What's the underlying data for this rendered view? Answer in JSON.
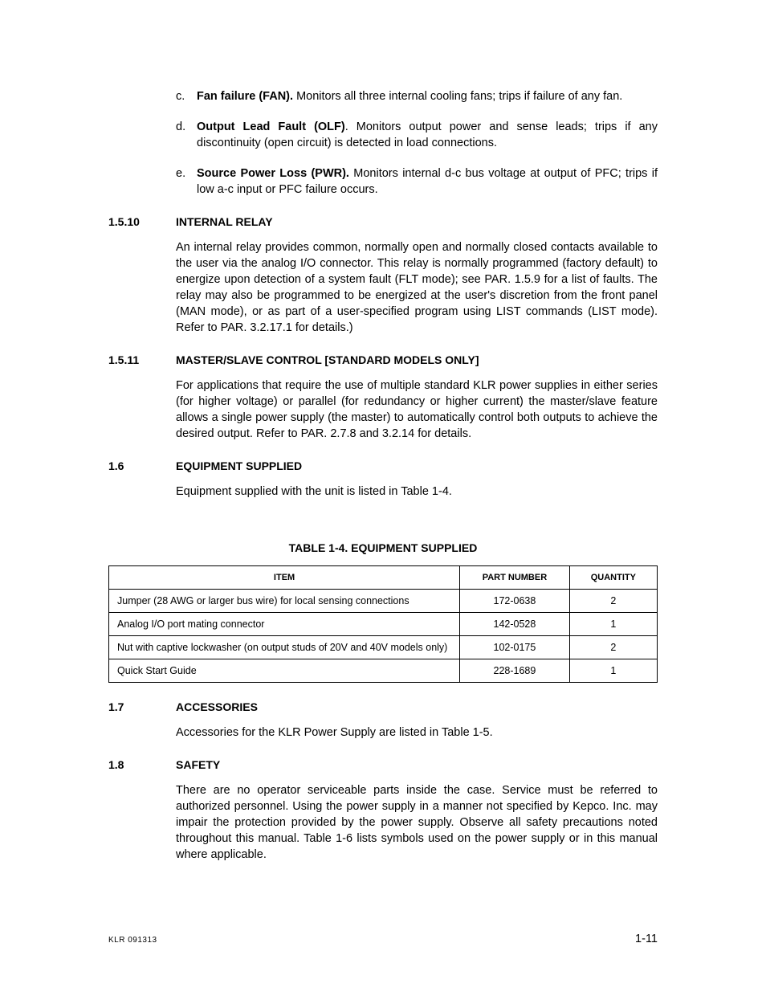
{
  "list_items": [
    {
      "marker": "c.",
      "lead": "Fan failure (FAN).",
      "rest": " Monitors all three internal cooling fans; trips if failure of any fan."
    },
    {
      "marker": "d.",
      "lead": "Output Lead Fault (OLF)",
      "rest": ". Monitors output power and sense leads; trips if any discontinuity (open circuit) is detected in load connections."
    },
    {
      "marker": "e.",
      "lead": "Source Power Loss (PWR).",
      "rest": " Monitors internal d-c bus voltage at output of PFC; trips if low a-c input or PFC failure occurs."
    }
  ],
  "sections": [
    {
      "num": "1.5.10",
      "title": "INTERNAL RELAY",
      "para": "An internal relay provides common, normally open and normally closed contacts available to the user via the analog I/O connector. This relay is normally programmed (factory default) to energize upon detection of a system fault (FLT mode); see PAR. 1.5.9 for a list of faults. The relay may also be programmed to be energized at the user's discretion from the front panel (MAN mode), or as part of a user-specified program using LIST commands (LIST mode). Refer to PAR. 3.2.17.1 for details.)"
    },
    {
      "num": "1.5.11",
      "title": "MASTER/SLAVE CONTROL [STANDARD MODELS ONLY]",
      "para": "For applications that require the use of multiple standard KLR power supplies in either series (for higher voltage) or parallel (for redundancy or higher current) the master/slave feature allows a single power supply (the master) to automatically control both outputs to achieve the desired output. Refer to PAR. 2.7.8 and 3.2.14 for details."
    },
    {
      "num": "1.6",
      "title": "EQUIPMENT SUPPLIED",
      "para": "Equipment supplied with the unit is listed in Table 1-4."
    }
  ],
  "table": {
    "title": "TABLE 1-4.  EQUIPMENT SUPPLIED",
    "columns": [
      "ITEM",
      "PART NUMBER",
      "QUANTITY"
    ],
    "rows": [
      [
        "Jumper (28 AWG or larger bus wire) for local sensing connections",
        "172-0638",
        "2"
      ],
      [
        "Analog I/O port mating connector",
        "142-0528",
        "1"
      ],
      [
        "Nut with captive lockwasher (on output studs of 20V and 40V models only)",
        "102-0175",
        "2"
      ],
      [
        "Quick Start Guide",
        "228-1689",
        "1"
      ]
    ]
  },
  "sections2": [
    {
      "num": "1.7",
      "title": "ACCESSORIES",
      "para": "Accessories for the KLR Power Supply are listed in Table 1-5."
    },
    {
      "num": "1.8",
      "title": "SAFETY",
      "para": "There are no operator serviceable parts inside the case. Service must be referred to authorized personnel. Using the power supply in a manner not specified by Kepco. Inc. may impair the protection provided by the power supply. Observe all safety precautions noted throughout this manual. Table 1-6 lists symbols used on the power supply or in this manual where applicable."
    }
  ],
  "footer": {
    "left": "KLR  091313",
    "right": "1-11"
  }
}
